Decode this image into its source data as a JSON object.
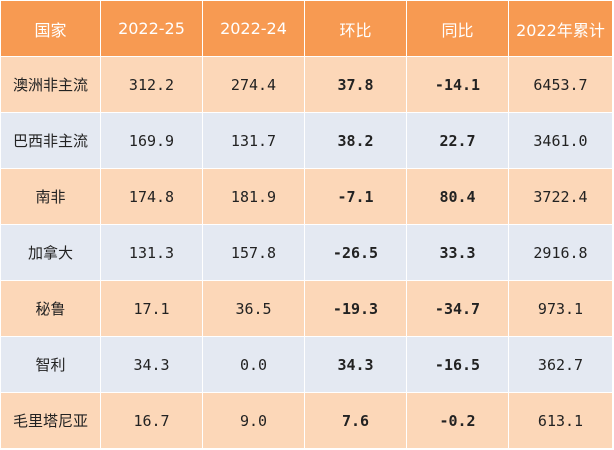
{
  "colors": {
    "header_bg": "#f79a52",
    "row_orange": "#fcd7b8",
    "row_blue": "#e4e9f2",
    "positive": "#d81e1e",
    "negative": "#1fa33a"
  },
  "table": {
    "headers": [
      "国家",
      "2022-25",
      "2022-24",
      "环比",
      "同比",
      "2022年累计"
    ],
    "rows": [
      {
        "country": "澳洲非主流",
        "w25": "312.2",
        "w24": "274.4",
        "mom": "37.8",
        "mom_sign": "red",
        "yoy": "-14.1",
        "yoy_sign": "green",
        "ytd": "6453.7"
      },
      {
        "country": "巴西非主流",
        "w25": "169.9",
        "w24": "131.7",
        "mom": "38.2",
        "mom_sign": "red",
        "yoy": "22.7",
        "yoy_sign": "red",
        "ytd": "3461.0"
      },
      {
        "country": "南非",
        "w25": "174.8",
        "w24": "181.9",
        "mom": "-7.1",
        "mom_sign": "green",
        "yoy": "80.4",
        "yoy_sign": "red",
        "ytd": "3722.4"
      },
      {
        "country": "加拿大",
        "w25": "131.3",
        "w24": "157.8",
        "mom": "-26.5",
        "mom_sign": "green",
        "yoy": "33.3",
        "yoy_sign": "red",
        "ytd": "2916.8"
      },
      {
        "country": "秘鲁",
        "w25": "17.1",
        "w24": "36.5",
        "mom": "-19.3",
        "mom_sign": "green",
        "yoy": "-34.7",
        "yoy_sign": "green",
        "ytd": "973.1"
      },
      {
        "country": "智利",
        "w25": "34.3",
        "w24": "0.0",
        "mom": "34.3",
        "mom_sign": "red",
        "yoy": "-16.5",
        "yoy_sign": "green",
        "ytd": "362.7"
      },
      {
        "country": "毛里塔尼亚",
        "w25": "16.7",
        "w24": "9.0",
        "mom": "7.6",
        "mom_sign": "red",
        "yoy": "-0.2",
        "yoy_sign": "green",
        "ytd": "613.1"
      }
    ]
  }
}
